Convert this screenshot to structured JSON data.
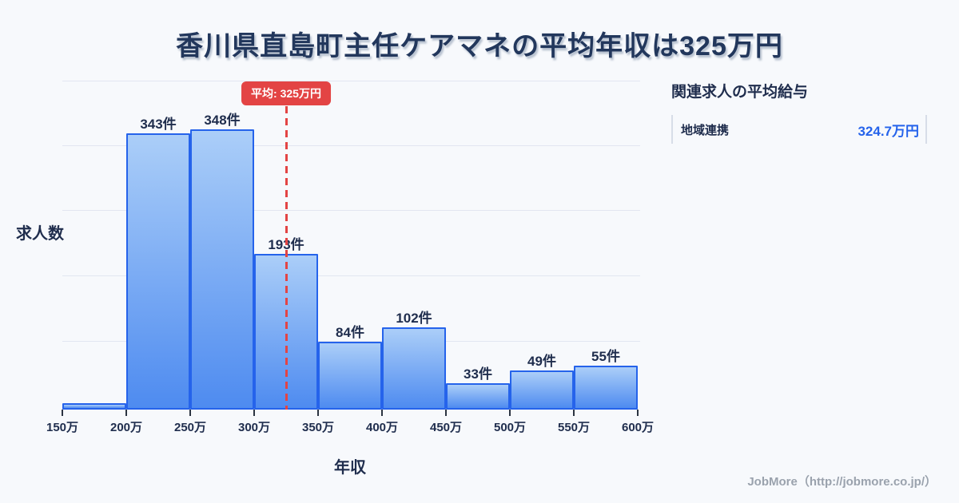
{
  "title": "香川県直島町主任ケアマネの平均年収は325万円",
  "chart_data": {
    "type": "bar",
    "title": "香川県直島町主任ケアマネの平均年収は325万円",
    "xlabel": "年収",
    "ylabel": "求人数",
    "x_axis": {
      "min": 150,
      "max": 600,
      "tick_step": 50,
      "unit": "万",
      "tick_labels": [
        "150万",
        "200万",
        "250万",
        "300万",
        "350万",
        "400万",
        "450万",
        "500万",
        "550万",
        "600万"
      ]
    },
    "categories": [
      "150万-200万",
      "200万-250万",
      "250万-300万",
      "300万-350万",
      "350万-400万",
      "400万-450万",
      "450万-500万",
      "500万-550万",
      "550万-600万"
    ],
    "values": [
      8,
      343,
      348,
      193,
      84,
      102,
      33,
      49,
      55
    ],
    "bar_labels": [
      "",
      "343件",
      "348件",
      "193件",
      "84件",
      "102件",
      "33件",
      "49件",
      "55件"
    ],
    "average": {
      "label": "平均: 325万円",
      "value_man_yen": 325
    },
    "ylim": [
      0,
      355
    ],
    "grid": true,
    "legend": false,
    "colors": {
      "background": "#f7f9fc",
      "bar_fill_top": "#abcef8",
      "bar_fill_bottom": "#4e8bf0",
      "bar_border": "#2563eb",
      "average_red": "#e34444",
      "grid": "#e2e6f1",
      "text_navy": "#1f2d4d",
      "value_blue": "#2563eb"
    }
  },
  "side_panel": {
    "heading": "関連求人の平均給与",
    "rows": [
      {
        "label": "地域連携",
        "value": "324.7万円"
      }
    ]
  },
  "footer": {
    "credit": "JobMore（http://jobmore.co.jp/）"
  }
}
